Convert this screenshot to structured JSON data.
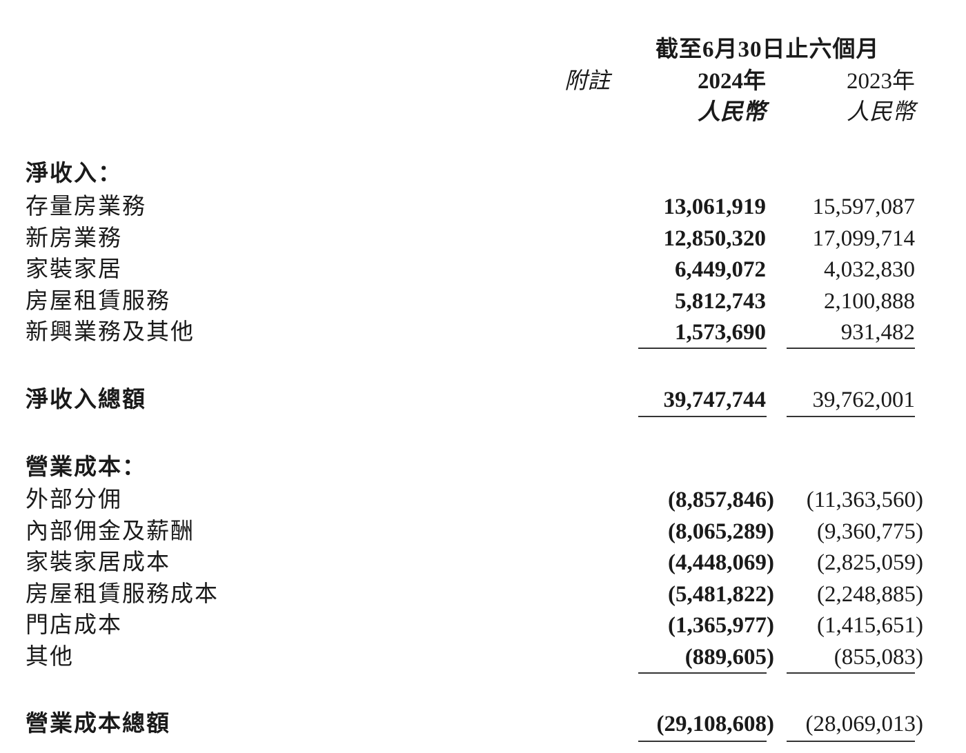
{
  "header": {
    "period": "截至6月30日止六個月",
    "note_label": "附註",
    "year_current": "2024年",
    "year_prior": "2023年",
    "currency_current": "人民幣",
    "currency_prior": "人民幣"
  },
  "net_revenue": {
    "heading": "淨收入：",
    "rows": [
      {
        "label": "存量房業務",
        "current": "13,061,919",
        "prior": "15,597,087"
      },
      {
        "label": "新房業務",
        "current": "12,850,320",
        "prior": "17,099,714"
      },
      {
        "label": "家裝家居",
        "current": "6,449,072",
        "prior": "4,032,830"
      },
      {
        "label": "房屋租賃服務",
        "current": "5,812,743",
        "prior": "2,100,888"
      },
      {
        "label": "新興業務及其他",
        "current": "1,573,690",
        "prior": "931,482"
      }
    ],
    "total": {
      "label": "淨收入總額",
      "current": "39,747,744",
      "prior": "39,762,001"
    }
  },
  "cost_of_revenue": {
    "heading": "營業成本：",
    "rows": [
      {
        "label": "外部分佣",
        "current": "(8,857,846)",
        "prior": "(11,363,560)"
      },
      {
        "label": "內部佣金及薪酬",
        "current": "(8,065,289)",
        "prior": "(9,360,775)"
      },
      {
        "label": "家裝家居成本",
        "current": "(4,448,069)",
        "prior": "(2,825,059)"
      },
      {
        "label": "房屋租賃服務成本",
        "current": "(5,481,822)",
        "prior": "(2,248,885)"
      },
      {
        "label": "門店成本",
        "current": "(1,365,977)",
        "prior": "(1,415,651)"
      },
      {
        "label": "其他",
        "current": "(889,605)",
        "prior": "(855,083)"
      }
    ],
    "total": {
      "label": "營業成本總額",
      "current": "(29,108,608)",
      "prior": "(28,069,013)"
    }
  }
}
